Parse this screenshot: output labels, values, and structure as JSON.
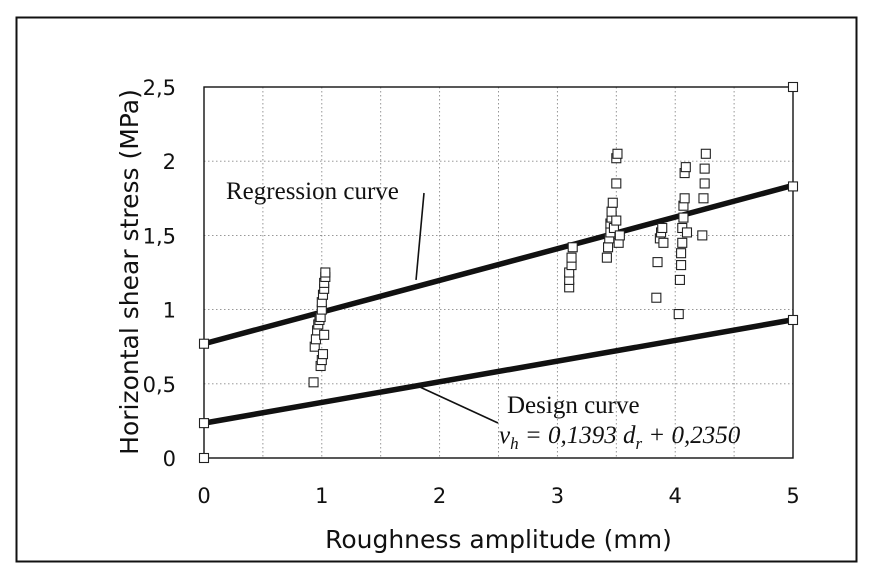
{
  "chart_data": {
    "type": "scatter",
    "title": "",
    "xlabel": "Roughness amplitude (mm)",
    "ylabel": "Horizontal shear stress (MPa)",
    "xlim": [
      0,
      5
    ],
    "ylim": [
      0,
      2.5
    ],
    "x_ticks": [
      0,
      1,
      2,
      3,
      4,
      5
    ],
    "y_ticks": [
      0,
      0.5,
      1,
      1.5,
      2,
      2.5
    ],
    "x_tick_labels": [
      "0",
      "1",
      "2",
      "3",
      "4",
      "5"
    ],
    "y_tick_labels": [
      "0",
      "0,5",
      "1",
      "1,5",
      "2",
      "2,5"
    ],
    "grid": true,
    "points": [
      {
        "x": 0.93,
        "y": 0.51
      },
      {
        "x": 0.94,
        "y": 0.75
      },
      {
        "x": 0.95,
        "y": 0.8
      },
      {
        "x": 0.96,
        "y": 0.86
      },
      {
        "x": 0.97,
        "y": 0.9
      },
      {
        "x": 0.98,
        "y": 0.93
      },
      {
        "x": 0.99,
        "y": 0.95
      },
      {
        "x": 1.0,
        "y": 1.0
      },
      {
        "x": 1.0,
        "y": 1.05
      },
      {
        "x": 1.01,
        "y": 1.1
      },
      {
        "x": 1.02,
        "y": 1.14
      },
      {
        "x": 1.02,
        "y": 1.18
      },
      {
        "x": 1.03,
        "y": 1.22
      },
      {
        "x": 1.03,
        "y": 1.25
      },
      {
        "x": 0.99,
        "y": 0.62
      },
      {
        "x": 1.0,
        "y": 0.66
      },
      {
        "x": 1.01,
        "y": 0.7
      },
      {
        "x": 1.02,
        "y": 0.83
      },
      {
        "x": 3.1,
        "y": 1.15
      },
      {
        "x": 3.1,
        "y": 1.2
      },
      {
        "x": 3.1,
        "y": 1.25
      },
      {
        "x": 3.12,
        "y": 1.3
      },
      {
        "x": 3.12,
        "y": 1.35
      },
      {
        "x": 3.13,
        "y": 1.42
      },
      {
        "x": 3.42,
        "y": 1.35
      },
      {
        "x": 3.43,
        "y": 1.42
      },
      {
        "x": 3.44,
        "y": 1.48
      },
      {
        "x": 3.45,
        "y": 1.52
      },
      {
        "x": 3.45,
        "y": 1.58
      },
      {
        "x": 3.46,
        "y": 1.62
      },
      {
        "x": 3.46,
        "y": 1.66
      },
      {
        "x": 3.47,
        "y": 1.72
      },
      {
        "x": 3.48,
        "y": 1.55
      },
      {
        "x": 3.5,
        "y": 1.6
      },
      {
        "x": 3.5,
        "y": 1.85
      },
      {
        "x": 3.5,
        "y": 2.02
      },
      {
        "x": 3.51,
        "y": 2.05
      },
      {
        "x": 3.52,
        "y": 1.45
      },
      {
        "x": 3.53,
        "y": 1.5
      },
      {
        "x": 3.84,
        "y": 1.08
      },
      {
        "x": 3.85,
        "y": 1.32
      },
      {
        "x": 3.87,
        "y": 1.48
      },
      {
        "x": 3.88,
        "y": 1.52
      },
      {
        "x": 3.89,
        "y": 1.55
      },
      {
        "x": 3.9,
        "y": 1.45
      },
      {
        "x": 4.03,
        "y": 0.97
      },
      {
        "x": 4.04,
        "y": 1.2
      },
      {
        "x": 4.05,
        "y": 1.3
      },
      {
        "x": 4.05,
        "y": 1.38
      },
      {
        "x": 4.06,
        "y": 1.45
      },
      {
        "x": 4.06,
        "y": 1.55
      },
      {
        "x": 4.07,
        "y": 1.62
      },
      {
        "x": 4.07,
        "y": 1.7
      },
      {
        "x": 4.08,
        "y": 1.75
      },
      {
        "x": 4.08,
        "y": 1.92
      },
      {
        "x": 4.09,
        "y": 1.96
      },
      {
        "x": 4.1,
        "y": 1.52
      },
      {
        "x": 4.23,
        "y": 1.5
      },
      {
        "x": 4.24,
        "y": 1.75
      },
      {
        "x": 4.25,
        "y": 1.85
      },
      {
        "x": 4.25,
        "y": 1.95
      },
      {
        "x": 4.26,
        "y": 2.05
      }
    ],
    "axis_markers": [
      {
        "x": 0.0,
        "y": 0.0
      },
      {
        "x": 0.0,
        "y": 0.235
      },
      {
        "x": 0.0,
        "y": 0.77
      },
      {
        "x": 5.0,
        "y": 0.93
      },
      {
        "x": 5.0,
        "y": 1.83
      },
      {
        "x": 5.0,
        "y": 2.5
      }
    ],
    "lines": [
      {
        "slope": 0.2134,
        "intercept": 0.77
      },
      {
        "slope": 0.1393,
        "intercept": 0.235
      }
    ],
    "annotations": [
      {
        "text": "Regression curve",
        "pointer": {
          "x": 1.8,
          "y": 1.2
        }
      },
      {
        "text": "Design curve",
        "pointer": {
          "x": 1.8,
          "y": 0.49
        }
      }
    ],
    "equation": {
      "v": "v",
      "v_sub": "h",
      "part1": " = 0,1393 ",
      "d": "d",
      "d_sub": "r",
      "part2": " + 0,2350"
    }
  }
}
